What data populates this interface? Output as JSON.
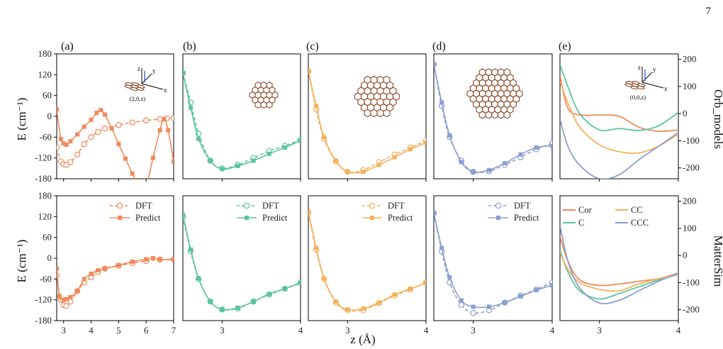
{
  "page_number": "7",
  "colors": {
    "Cor": "#f08a5b",
    "C": "#5bc49f",
    "CC": "#f5b15c",
    "CCC": "#8b9fd0"
  },
  "labels": {
    "xlabel": "z (Å)",
    "ylabel": "E (cm⁻¹)",
    "row_titles": [
      "Orb_models",
      "MatterSim"
    ],
    "panels": [
      "(a)",
      "(b)",
      "(c)",
      "(d)",
      "(e)"
    ],
    "inset_a": "(2,0,z)",
    "inset_e": "(0,0,z)",
    "axes_letters": [
      "z",
      "y",
      "x"
    ]
  },
  "chart_data": [
    {
      "type": "line",
      "panel": "(a)",
      "row": "Orb_models",
      "molecule": "Cor",
      "xlim": [
        2.75,
        7.0
      ],
      "ylim": [
        -180,
        180
      ],
      "xticks": [
        3,
        4,
        5,
        6,
        7
      ],
      "yticks": [
        -180,
        -120,
        -60,
        0,
        60,
        120,
        180
      ],
      "legend": false,
      "series": [
        {
          "name": "DFT",
          "style": "dashed-open",
          "x": [
            2.75,
            2.9,
            3.0,
            3.1,
            3.25,
            3.5,
            3.75,
            4.0,
            4.25,
            4.5,
            5.0,
            5.5,
            6.0,
            6.5,
            6.75,
            7.0
          ],
          "y": [
            -90,
            -130,
            -138,
            -140,
            -132,
            -110,
            -80,
            -60,
            -45,
            -35,
            -25,
            -18,
            -12,
            -8,
            -6,
            -5
          ]
        },
        {
          "name": "Predict",
          "style": "solid-filled",
          "x": [
            2.75,
            2.9,
            3.0,
            3.1,
            3.25,
            3.5,
            3.75,
            4.0,
            4.2,
            4.35,
            4.5,
            4.75,
            5.0,
            5.25,
            5.5,
            5.75,
            6.0,
            6.25,
            6.5,
            6.65,
            6.8,
            7.0
          ],
          "y": [
            20,
            -65,
            -78,
            -82,
            -72,
            -52,
            -30,
            -10,
            10,
            18,
            5,
            -35,
            -80,
            -122,
            -165,
            -200,
            -200,
            -120,
            -40,
            -8,
            -40,
            -130
          ]
        }
      ]
    },
    {
      "type": "line",
      "panel": "(b)",
      "row": "Orb_models",
      "molecule": "C",
      "xlim": [
        2.5,
        4.0
      ],
      "ylim": [
        -180,
        180
      ],
      "xticks": [
        3,
        4
      ],
      "legend": false,
      "series": [
        {
          "name": "DFT",
          "style": "dashed-open",
          "x": [
            2.5,
            2.6,
            2.7,
            2.85,
            3.0,
            3.2,
            3.4,
            3.6,
            3.8,
            4.0
          ],
          "y": [
            125,
            40,
            -50,
            -128,
            -150,
            -140,
            -120,
            -100,
            -85,
            -68
          ]
        },
        {
          "name": "Predict",
          "style": "solid-filled",
          "x": [
            2.5,
            2.6,
            2.7,
            2.85,
            3.0,
            3.2,
            3.4,
            3.6,
            3.8,
            4.0
          ],
          "y": [
            125,
            25,
            -65,
            -128,
            -152,
            -143,
            -128,
            -108,
            -90,
            -70
          ]
        }
      ]
    },
    {
      "type": "line",
      "panel": "(c)",
      "row": "Orb_models",
      "molecule": "CC",
      "xlim": [
        2.5,
        4.0
      ],
      "ylim": [
        -180,
        180
      ],
      "xticks": [
        3,
        4
      ],
      "legend": false,
      "series": [
        {
          "name": "DFT",
          "style": "dashed-open",
          "x": [
            2.5,
            2.6,
            2.7,
            2.85,
            3.0,
            3.2,
            3.4,
            3.6,
            3.8,
            4.0
          ],
          "y": [
            130,
            20,
            -65,
            -130,
            -160,
            -155,
            -132,
            -110,
            -90,
            -70
          ]
        },
        {
          "name": "Predict",
          "style": "solid-filled",
          "x": [
            2.5,
            2.6,
            2.7,
            2.85,
            3.0,
            3.2,
            3.4,
            3.6,
            3.8,
            4.0
          ],
          "y": [
            130,
            30,
            -60,
            -128,
            -160,
            -160,
            -140,
            -118,
            -95,
            -76
          ]
        }
      ]
    },
    {
      "type": "line",
      "panel": "(d)",
      "row": "Orb_models",
      "molecule": "CCC",
      "xlim": [
        2.5,
        4.0
      ],
      "ylim": [
        -180,
        180
      ],
      "xticks": [
        3,
        4
      ],
      "legend": false,
      "series": [
        {
          "name": "DFT",
          "style": "dashed-open",
          "x": [
            2.5,
            2.6,
            2.7,
            2.85,
            3.0,
            3.2,
            3.4,
            3.6,
            3.8,
            4.0
          ],
          "y": [
            150,
            30,
            -60,
            -128,
            -160,
            -158,
            -140,
            -118,
            -95,
            -78
          ]
        },
        {
          "name": "Predict",
          "style": "solid-filled",
          "x": [
            2.5,
            2.6,
            2.7,
            2.85,
            3.0,
            3.2,
            3.4,
            3.6,
            3.8,
            4.0
          ],
          "y": [
            150,
            40,
            -55,
            -132,
            -160,
            -155,
            -135,
            -110,
            -90,
            -85
          ]
        }
      ]
    },
    {
      "type": "line",
      "panel": "(e)",
      "row": "Orb_models",
      "xlim": [
        2.5,
        4.0
      ],
      "ylim": [
        -240,
        220
      ],
      "xticks": [
        3,
        4
      ],
      "yticks": [
        -200,
        -100,
        0,
        100,
        200
      ],
      "legend": false,
      "series": [
        {
          "name": "Cor",
          "x": [
            2.5,
            2.6,
            2.75,
            3.0,
            3.25,
            3.5,
            3.75,
            4.0
          ],
          "y": [
            140,
            20,
            -5,
            -5,
            -10,
            -50,
            -65,
            -60
          ]
        },
        {
          "name": "C",
          "x": [
            2.5,
            2.6,
            2.75,
            3.0,
            3.25,
            3.5,
            3.75,
            4.0
          ],
          "y": [
            180,
            100,
            0,
            -60,
            -55,
            -62,
            -45,
            5
          ]
        },
        {
          "name": "CC",
          "x": [
            2.5,
            2.6,
            2.75,
            3.0,
            3.25,
            3.5,
            3.75,
            4.0
          ],
          "y": [
            120,
            40,
            -50,
            -115,
            -140,
            -145,
            -120,
            -75
          ]
        },
        {
          "name": "CCC",
          "x": [
            2.5,
            2.6,
            2.75,
            3.0,
            3.25,
            3.5,
            3.75,
            4.0
          ],
          "y": [
            -20,
            -120,
            -190,
            -240,
            -225,
            -170,
            -120,
            -70
          ]
        }
      ]
    },
    {
      "type": "line",
      "panel": "(a)",
      "row": "MatterSim",
      "molecule": "Cor",
      "xlim": [
        2.75,
        7.0
      ],
      "ylim": [
        -180,
        180
      ],
      "xticks": [
        3,
        4,
        5,
        6,
        7
      ],
      "yticks": [
        -180,
        -120,
        -60,
        0,
        60,
        120,
        180
      ],
      "legend": true,
      "legend_position": "top-right",
      "series": [
        {
          "name": "DFT",
          "style": "dashed-open",
          "x": [
            2.75,
            2.9,
            3.0,
            3.1,
            3.25,
            3.5,
            3.75,
            4.0,
            4.25,
            4.5,
            5.0,
            5.5,
            6.0,
            6.5,
            7.0
          ],
          "y": [
            -50,
            -120,
            -135,
            -138,
            -125,
            -95,
            -70,
            -55,
            -40,
            -30,
            -22,
            -14,
            -8,
            -4,
            -3
          ]
        },
        {
          "name": "Predict",
          "style": "solid-filled",
          "x": [
            2.75,
            2.85,
            3.0,
            3.1,
            3.25,
            3.5,
            3.75,
            4.0,
            4.25,
            4.5,
            5.0,
            5.5,
            6.0,
            6.25,
            6.5,
            7.0
          ],
          "y": [
            -30,
            -110,
            -120,
            -118,
            -112,
            -95,
            -60,
            -45,
            -35,
            -30,
            -20,
            -10,
            -3,
            0,
            -3,
            -5
          ]
        }
      ]
    },
    {
      "type": "line",
      "panel": "(b)",
      "row": "MatterSim",
      "molecule": "C",
      "xlim": [
        2.5,
        4.0
      ],
      "ylim": [
        -180,
        180
      ],
      "xticks": [
        3,
        4
      ],
      "legend": true,
      "legend_position": "top-right",
      "series": [
        {
          "name": "DFT",
          "style": "dashed-open",
          "x": [
            2.5,
            2.6,
            2.7,
            2.85,
            3.0,
            3.2,
            3.4,
            3.6,
            3.8,
            4.0
          ],
          "y": [
            120,
            20,
            -60,
            -125,
            -148,
            -145,
            -125,
            -105,
            -88,
            -70
          ]
        },
        {
          "name": "Predict",
          "style": "solid-filled",
          "x": [
            2.5,
            2.6,
            2.7,
            2.85,
            3.0,
            3.2,
            3.4,
            3.6,
            3.8,
            4.0
          ],
          "y": [
            125,
            25,
            -58,
            -125,
            -148,
            -143,
            -125,
            -103,
            -88,
            -72
          ]
        }
      ]
    },
    {
      "type": "line",
      "panel": "(c)",
      "row": "MatterSim",
      "molecule": "CC",
      "xlim": [
        2.5,
        4.0
      ],
      "ylim": [
        -180,
        180
      ],
      "xticks": [
        3,
        4
      ],
      "legend": true,
      "legend_position": "top-right",
      "series": [
        {
          "name": "DFT",
          "style": "dashed-open",
          "x": [
            2.5,
            2.6,
            2.7,
            2.85,
            3.0,
            3.2,
            3.4,
            3.6,
            3.8,
            4.0
          ],
          "y": [
            130,
            25,
            -60,
            -128,
            -150,
            -150,
            -130,
            -108,
            -90,
            -70
          ]
        },
        {
          "name": "Predict",
          "style": "solid-filled",
          "x": [
            2.5,
            2.6,
            2.7,
            2.85,
            3.0,
            3.2,
            3.4,
            3.6,
            3.8,
            4.0
          ],
          "y": [
            135,
            30,
            -58,
            -125,
            -148,
            -145,
            -128,
            -105,
            -88,
            -72
          ]
        }
      ]
    },
    {
      "type": "line",
      "panel": "(d)",
      "row": "MatterSim",
      "molecule": "CCC",
      "xlim": [
        2.5,
        4.0
      ],
      "ylim": [
        -180,
        180
      ],
      "xticks": [
        3,
        4
      ],
      "legend": true,
      "legend_position": "top-right",
      "series": [
        {
          "name": "DFT",
          "style": "dashed-open",
          "x": [
            2.5,
            2.6,
            2.7,
            2.85,
            3.0,
            3.2,
            3.4,
            3.6,
            3.8,
            4.0
          ],
          "y": [
            130,
            20,
            -70,
            -135,
            -158,
            -150,
            -128,
            -108,
            -90,
            -70
          ]
        },
        {
          "name": "Predict",
          "style": "solid-filled",
          "x": [
            2.5,
            2.6,
            2.7,
            2.85,
            3.0,
            3.2,
            3.4,
            3.6,
            3.8,
            4.0
          ],
          "y": [
            130,
            30,
            -55,
            -122,
            -140,
            -140,
            -128,
            -110,
            -92,
            -78
          ]
        }
      ]
    },
    {
      "type": "line",
      "panel": "(e)",
      "row": "MatterSim",
      "xlim": [
        2.5,
        4.0
      ],
      "ylim": [
        -240,
        220
      ],
      "xticks": [
        3,
        4
      ],
      "yticks": [
        -200,
        -100,
        0,
        100,
        200
      ],
      "legend": true,
      "legend_position": "top",
      "series": [
        {
          "name": "Cor",
          "x": [
            2.5,
            2.6,
            2.75,
            3.0,
            3.25,
            3.5,
            3.75,
            4.0
          ],
          "y": [
            70,
            -20,
            -90,
            -110,
            -105,
            -95,
            -85,
            -65
          ]
        },
        {
          "name": "C",
          "x": [
            2.5,
            2.6,
            2.75,
            3.0,
            3.25,
            3.5,
            3.75,
            4.0
          ],
          "y": [
            20,
            -60,
            -130,
            -160,
            -140,
            -115,
            -90,
            -70
          ]
        },
        {
          "name": "CC",
          "x": [
            2.5,
            2.6,
            2.75,
            3.0,
            3.25,
            3.5,
            3.75,
            4.0
          ],
          "y": [
            10,
            -50,
            -100,
            -125,
            -130,
            -105,
            -85,
            -70
          ]
        },
        {
          "name": "CCC",
          "x": [
            2.5,
            2.6,
            2.75,
            3.0,
            3.25,
            3.5,
            3.75,
            4.0
          ],
          "y": [
            110,
            -20,
            -120,
            -175,
            -165,
            -130,
            -95,
            -65
          ]
        }
      ]
    }
  ]
}
